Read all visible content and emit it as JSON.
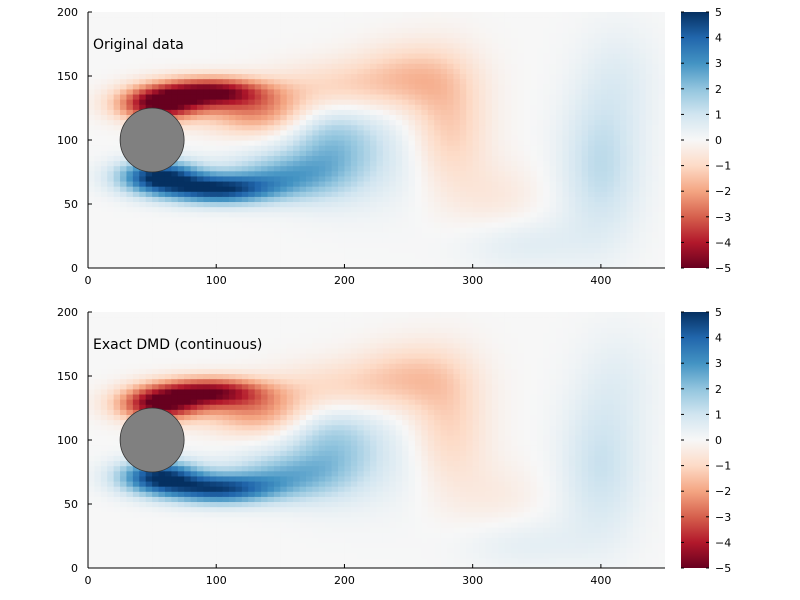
{
  "chart_data": [
    {
      "type": "heatmap",
      "title": "",
      "annotation": "Original data",
      "xlabel": "",
      "ylabel": "",
      "xlim": [
        0,
        450
      ],
      "ylim": [
        0,
        200
      ],
      "x_ticks": [
        0,
        100,
        200,
        300,
        400
      ],
      "y_ticks": [
        0,
        50,
        100,
        150,
        200
      ],
      "colorbar": {
        "range": [
          -5,
          5
        ],
        "ticks": [
          5,
          4,
          3,
          2,
          1,
          0,
          -1,
          -2,
          -3,
          -4,
          -5
        ],
        "tick_labels": [
          "5",
          "4",
          "3",
          "2",
          "1",
          "0",
          "−1",
          "−2",
          "−3",
          "−4",
          "−5"
        ],
        "colormap": "RdBu",
        "placement": "right"
      },
      "obstacle": {
        "shape": "circle",
        "center": [
          50,
          100
        ],
        "radius": 25,
        "color": "#808080"
      },
      "vortices": [
        {
          "x": 55,
          "y": 128,
          "value": -4.8,
          "sx": 22,
          "sy": 9
        },
        {
          "x": 95,
          "y": 138,
          "value": -4.6,
          "sx": 30,
          "sy": 8
        },
        {
          "x": 130,
          "y": 122,
          "value": -2.2,
          "sx": 28,
          "sy": 12
        },
        {
          "x": 190,
          "y": 140,
          "value": -1.2,
          "sx": 35,
          "sy": 15
        },
        {
          "x": 250,
          "y": 150,
          "value": -1.3,
          "sx": 30,
          "sy": 18
        },
        {
          "x": 280,
          "y": 110,
          "value": -1.4,
          "sx": 22,
          "sy": 35
        },
        {
          "x": 320,
          "y": 55,
          "value": -0.5,
          "sx": 25,
          "sy": 20
        },
        {
          "x": 55,
          "y": 72,
          "value": 4.8,
          "sx": 22,
          "sy": 9
        },
        {
          "x": 100,
          "y": 62,
          "value": 4.5,
          "sx": 30,
          "sy": 8
        },
        {
          "x": 150,
          "y": 72,
          "value": 2.2,
          "sx": 30,
          "sy": 13
        },
        {
          "x": 190,
          "y": 95,
          "value": 2.0,
          "sx": 25,
          "sy": 25
        },
        {
          "x": 240,
          "y": 90,
          "value": 0.6,
          "sx": 30,
          "sy": 30
        },
        {
          "x": 340,
          "y": 20,
          "value": 0.6,
          "sx": 35,
          "sy": 15
        },
        {
          "x": 400,
          "y": 80,
          "value": 1.3,
          "sx": 22,
          "sy": 40
        },
        {
          "x": 415,
          "y": 150,
          "value": 0.5,
          "sx": 22,
          "sy": 30
        }
      ]
    },
    {
      "type": "heatmap",
      "title": "",
      "annotation": "Exact DMD (continuous)",
      "xlabel": "",
      "ylabel": "",
      "xlim": [
        0,
        450
      ],
      "ylim": [
        0,
        200
      ],
      "x_ticks": [
        0,
        100,
        200,
        300,
        400
      ],
      "y_ticks": [
        0,
        50,
        100,
        150,
        200
      ],
      "colorbar": {
        "range": [
          -5,
          5
        ],
        "ticks": [
          5,
          4,
          3,
          2,
          1,
          0,
          -1,
          -2,
          -3,
          -4,
          -5
        ],
        "tick_labels": [
          "5",
          "4",
          "3",
          "2",
          "1",
          "0",
          "−1",
          "−2",
          "−3",
          "−4",
          "−5"
        ],
        "colormap": "RdBu",
        "placement": "right"
      },
      "obstacle": {
        "shape": "circle",
        "center": [
          50,
          100
        ],
        "radius": 25,
        "color": "#808080"
      },
      "vortices": [
        {
          "x": 55,
          "y": 128,
          "value": -4.6,
          "sx": 22,
          "sy": 9
        },
        {
          "x": 95,
          "y": 138,
          "value": -4.3,
          "sx": 30,
          "sy": 8
        },
        {
          "x": 130,
          "y": 122,
          "value": -2.0,
          "sx": 28,
          "sy": 12
        },
        {
          "x": 190,
          "y": 140,
          "value": -1.1,
          "sx": 35,
          "sy": 15
        },
        {
          "x": 250,
          "y": 150,
          "value": -1.2,
          "sx": 30,
          "sy": 18
        },
        {
          "x": 280,
          "y": 110,
          "value": -1.2,
          "sx": 22,
          "sy": 35
        },
        {
          "x": 320,
          "y": 55,
          "value": -0.4,
          "sx": 25,
          "sy": 20
        },
        {
          "x": 55,
          "y": 72,
          "value": 4.6,
          "sx": 22,
          "sy": 9
        },
        {
          "x": 100,
          "y": 62,
          "value": 4.2,
          "sx": 30,
          "sy": 8
        },
        {
          "x": 150,
          "y": 72,
          "value": 2.0,
          "sx": 30,
          "sy": 13
        },
        {
          "x": 190,
          "y": 95,
          "value": 1.8,
          "sx": 25,
          "sy": 25
        },
        {
          "x": 240,
          "y": 90,
          "value": 0.5,
          "sx": 30,
          "sy": 30
        },
        {
          "x": 340,
          "y": 20,
          "value": 0.5,
          "sx": 35,
          "sy": 15
        },
        {
          "x": 400,
          "y": 80,
          "value": 1.1,
          "sx": 22,
          "sy": 40
        },
        {
          "x": 415,
          "y": 150,
          "value": 0.4,
          "sx": 22,
          "sy": 30
        }
      ]
    }
  ]
}
